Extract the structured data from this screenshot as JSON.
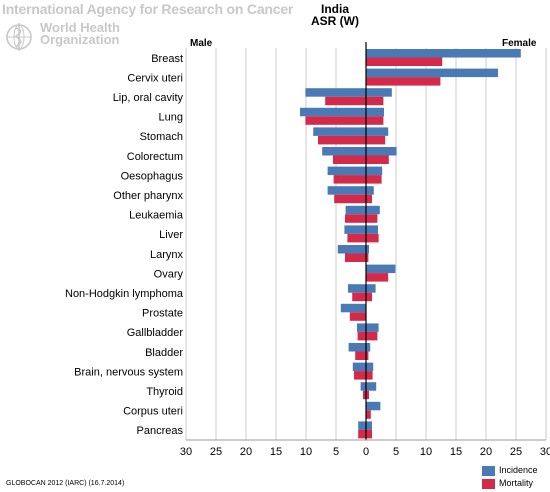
{
  "header": {
    "iarc": "International Agency for Research on Cancer",
    "who_line1": "World Health",
    "who_line2": "Organization"
  },
  "colors": {
    "incidence": "#4a7ab5",
    "mortality": "#d42a4a",
    "grid": "#cccccc",
    "zero_line": "#000000"
  },
  "footer": {
    "source": "GLOBOCAN 2012 (IARC) (16.7.2014)"
  },
  "chart_data": {
    "type": "bar",
    "orientation": "horizontal",
    "title": "India",
    "subtitle": "ASR (W)",
    "left_label": "Male",
    "right_label": "Female",
    "xlim": [
      -30,
      30
    ],
    "x_ticks": [
      30,
      25,
      20,
      15,
      10,
      5,
      0,
      5,
      10,
      15,
      20,
      25,
      30
    ],
    "grid": true,
    "legend_position": "bottom-right",
    "categories": [
      "Breast",
      "Cervix uteri",
      "Lip, oral cavity",
      "Lung",
      "Stomach",
      "Colorectum",
      "Oesophagus",
      "Other pharynx",
      "Leukaemia",
      "Liver",
      "Larynx",
      "Ovary",
      "Non-Hodgkin lymphoma",
      "Prostate",
      "Gallbladder",
      "Bladder",
      "Brain, nervous system",
      "Thyroid",
      "Corpus uteri",
      "Pancreas"
    ],
    "series": [
      {
        "name": "Incidence",
        "key": "incidence",
        "male": [
          null,
          null,
          10.1,
          11.0,
          8.8,
          7.3,
          6.4,
          6.4,
          3.4,
          3.6,
          4.7,
          null,
          3.0,
          4.2,
          1.5,
          2.9,
          2.2,
          0.9,
          null,
          1.3
        ],
        "female": [
          25.8,
          22.0,
          4.3,
          3.0,
          3.7,
          5.1,
          2.7,
          1.3,
          2.3,
          2.0,
          0.5,
          4.9,
          1.6,
          null,
          2.1,
          0.7,
          1.2,
          1.7,
          2.4,
          1.0
        ]
      },
      {
        "name": "Mortality",
        "key": "mortality",
        "male": [
          null,
          null,
          6.8,
          10.1,
          8.0,
          5.5,
          5.4,
          5.3,
          3.5,
          3.1,
          3.5,
          null,
          2.3,
          2.7,
          1.4,
          1.8,
          2.0,
          0.5,
          null,
          1.3
        ],
        "female": [
          12.7,
          12.4,
          2.9,
          2.9,
          3.2,
          3.8,
          2.6,
          1.0,
          1.9,
          2.1,
          0.4,
          3.7,
          1.0,
          null,
          1.9,
          0.4,
          1.1,
          0.5,
          0.8,
          1.0
        ]
      }
    ]
  }
}
